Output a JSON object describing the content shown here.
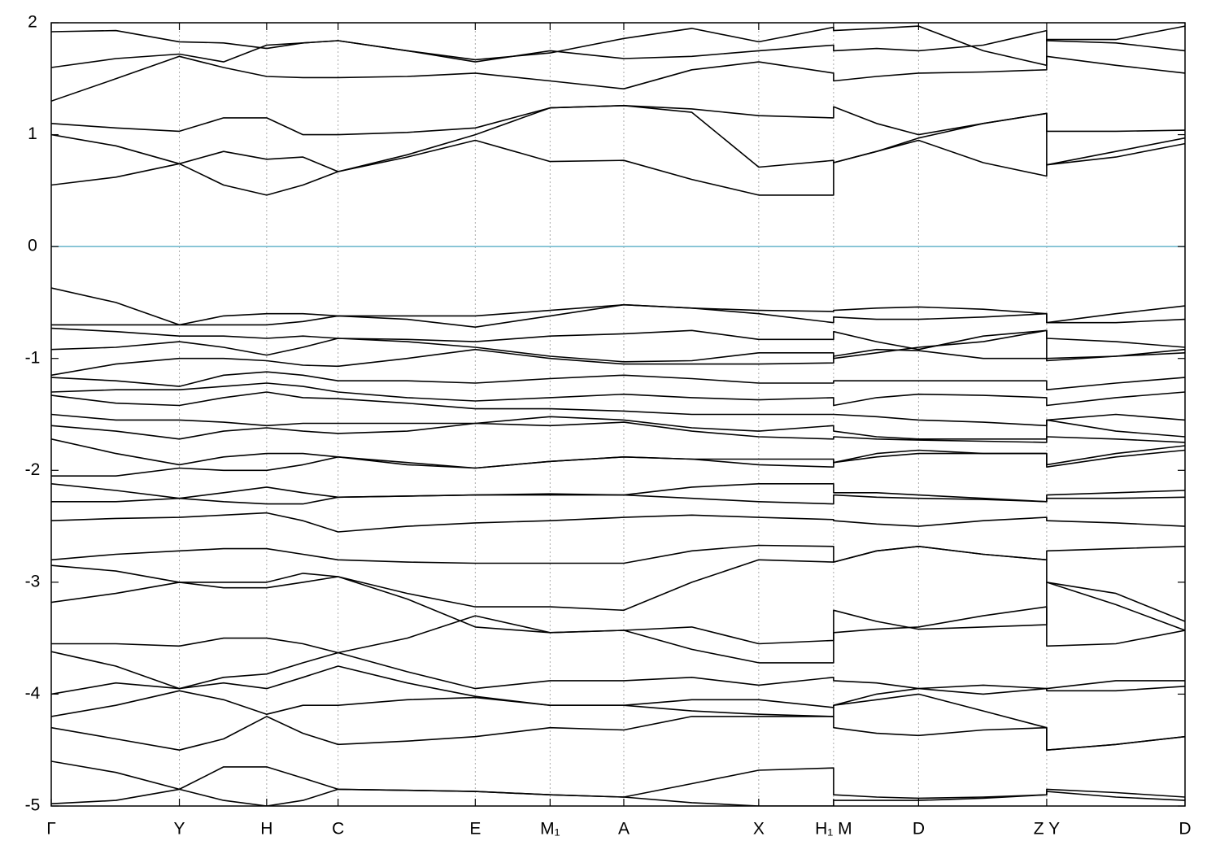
{
  "chart_data": {
    "type": "line",
    "xlim": [
      0,
      1
    ],
    "ylim": [
      -5,
      2
    ],
    "yticks": [
      -5,
      -4,
      -3,
      -2,
      -1,
      0,
      1,
      2
    ],
    "xticks": [
      {
        "value": 0,
        "label": "Γ"
      },
      {
        "value": 0.113,
        "label": "Y"
      },
      {
        "value": 0.19,
        "label": "H"
      },
      {
        "value": 0.253,
        "label": "C"
      },
      {
        "value": 0.374,
        "label": "E"
      },
      {
        "value": 0.44,
        "label": "M₁"
      },
      {
        "value": 0.505,
        "label": "A"
      },
      {
        "value": 0.624,
        "label": "X"
      },
      {
        "value": 0.69,
        "label": "H₁ M"
      },
      {
        "value": 0.765,
        "label": "D"
      },
      {
        "value": 0.878,
        "label": "Z Y"
      },
      {
        "value": 1,
        "label": "D"
      }
    ],
    "grid_x": true,
    "zero_line": {
      "y": 0,
      "color": "#66b3c9"
    },
    "color": "#000000",
    "x": [
      0,
      0.057,
      0.113,
      0.152,
      0.19,
      0.222,
      0.253,
      0.314,
      0.374,
      0.44,
      0.505,
      0.565,
      0.624,
      0.69,
      0.69,
      0.728,
      0.765,
      0.822,
      0.878,
      0.878,
      0.939,
      1.0
    ],
    "series": [
      {
        "values": [
          0.55,
          0.62,
          0.74,
          0.55,
          0.46,
          0.55,
          0.67,
          0.8,
          0.95,
          0.76,
          0.77,
          0.6,
          0.46,
          0.46,
          0.75,
          0.85,
          0.95,
          0.75,
          0.63,
          0.73,
          0.8,
          0.92
        ]
      },
      {
        "values": [
          1.0,
          0.9,
          0.74,
          0.85,
          0.78,
          0.8,
          0.67,
          0.82,
          1.0,
          1.24,
          1.26,
          1.2,
          0.71,
          0.77,
          0.75,
          0.85,
          0.97,
          1.1,
          1.19,
          0.73,
          0.85,
          0.97
        ]
      },
      {
        "values": [
          1.1,
          1.06,
          1.03,
          1.15,
          1.15,
          1.0,
          1.0,
          1.02,
          1.06,
          1.24,
          1.26,
          1.23,
          1.17,
          1.15,
          1.25,
          1.1,
          1.0,
          1.1,
          1.19,
          1.03,
          1.03,
          1.04
        ]
      },
      {
        "values": [
          1.3,
          1.5,
          1.7,
          1.6,
          1.52,
          1.51,
          1.51,
          1.52,
          1.55,
          1.48,
          1.41,
          1.58,
          1.65,
          1.55,
          1.48,
          1.52,
          1.55,
          1.56,
          1.58,
          1.7,
          1.62,
          1.55
        ]
      },
      {
        "values": [
          1.6,
          1.68,
          1.72,
          1.65,
          1.8,
          1.82,
          1.84,
          1.75,
          1.65,
          1.75,
          1.68,
          1.7,
          1.75,
          1.8,
          1.75,
          1.77,
          1.75,
          1.8,
          1.93,
          1.84,
          1.82,
          1.75
        ]
      },
      {
        "values": [
          1.92,
          1.93,
          1.83,
          1.82,
          1.77,
          1.82,
          1.84,
          1.75,
          1.67,
          1.73,
          1.86,
          1.95,
          1.83,
          1.96,
          1.93,
          1.95,
          1.97,
          1.75,
          1.62,
          1.85,
          1.85,
          1.97
        ]
      },
      {
        "values": [
          -0.37,
          -0.5,
          -0.7,
          -0.62,
          -0.6,
          -0.6,
          -0.62,
          -0.62,
          -0.62,
          -0.57,
          -0.52,
          -0.55,
          -0.57,
          -0.58,
          -0.57,
          -0.55,
          -0.54,
          -0.56,
          -0.6,
          -0.68,
          -0.6,
          -0.53
        ]
      },
      {
        "values": [
          -0.7,
          -0.7,
          -0.7,
          -0.7,
          -0.7,
          -0.67,
          -0.62,
          -0.65,
          -0.72,
          -0.62,
          -0.52,
          -0.55,
          -0.6,
          -0.68,
          -0.63,
          -0.65,
          -0.65,
          -0.63,
          -0.6,
          -0.68,
          -0.68,
          -0.65
        ]
      },
      {
        "values": [
          -0.73,
          -0.76,
          -0.8,
          -0.8,
          -0.82,
          -0.8,
          -0.82,
          -0.83,
          -0.85,
          -0.8,
          -0.78,
          -0.75,
          -0.83,
          -0.83,
          -0.76,
          -0.85,
          -0.92,
          -0.8,
          -0.75,
          -0.82,
          -0.85,
          -0.9
        ]
      },
      {
        "values": [
          -0.92,
          -0.9,
          -0.85,
          -0.9,
          -0.97,
          -0.9,
          -0.82,
          -0.85,
          -0.9,
          -0.98,
          -1.03,
          -1.02,
          -0.95,
          -0.95,
          -1.0,
          -0.95,
          -0.9,
          -0.85,
          -0.75,
          -1.02,
          -0.98,
          -0.92
        ]
      },
      {
        "values": [
          -1.15,
          -1.05,
          -1.0,
          -1.0,
          -1.02,
          -1.06,
          -1.07,
          -1.0,
          -0.92,
          -1.0,
          -1.05,
          -1.05,
          -1.05,
          -1.04,
          -0.98,
          -0.92,
          -0.93,
          -1.0,
          -1.0,
          -1.0,
          -0.98,
          -0.95
        ]
      },
      {
        "values": [
          -1.17,
          -1.2,
          -1.25,
          -1.15,
          -1.12,
          -1.15,
          -1.2,
          -1.2,
          -1.22,
          -1.18,
          -1.15,
          -1.18,
          -1.22,
          -1.22,
          -1.2,
          -1.2,
          -1.2,
          -1.2,
          -1.2,
          -1.28,
          -1.22,
          -1.17
        ]
      },
      {
        "values": [
          -1.3,
          -1.28,
          -1.28,
          -1.25,
          -1.22,
          -1.25,
          -1.3,
          -1.35,
          -1.38,
          -1.35,
          -1.32,
          -1.35,
          -1.37,
          -1.35,
          -1.42,
          -1.35,
          -1.32,
          -1.33,
          -1.35,
          -1.42,
          -1.35,
          -1.3
        ]
      },
      {
        "values": [
          -1.33,
          -1.4,
          -1.42,
          -1.35,
          -1.3,
          -1.35,
          -1.36,
          -1.4,
          -1.45,
          -1.45,
          -1.47,
          -1.5,
          -1.5,
          -1.5,
          -1.5,
          -1.52,
          -1.55,
          -1.57,
          -1.6,
          -1.55,
          -1.5,
          -1.55
        ]
      },
      {
        "values": [
          -1.5,
          -1.55,
          -1.55,
          -1.57,
          -1.6,
          -1.58,
          -1.58,
          -1.58,
          -1.58,
          -1.52,
          -1.55,
          -1.62,
          -1.65,
          -1.6,
          -1.65,
          -1.7,
          -1.72,
          -1.72,
          -1.72,
          -1.55,
          -1.65,
          -1.7
        ]
      },
      {
        "values": [
          -1.6,
          -1.65,
          -1.72,
          -1.65,
          -1.62,
          -1.65,
          -1.67,
          -1.65,
          -1.58,
          -1.6,
          -1.57,
          -1.65,
          -1.7,
          -1.72,
          -1.7,
          -1.72,
          -1.73,
          -1.74,
          -1.75,
          -1.7,
          -1.72,
          -1.75
        ]
      },
      {
        "values": [
          -1.72,
          -1.85,
          -1.95,
          -1.88,
          -1.85,
          -1.85,
          -1.88,
          -1.95,
          -1.98,
          -1.92,
          -1.88,
          -1.9,
          -1.95,
          -1.97,
          -1.93,
          -1.85,
          -1.82,
          -1.85,
          -1.85,
          -1.97,
          -1.88,
          -1.82
        ]
      },
      {
        "values": [
          -2.05,
          -2.05,
          -1.98,
          -2.0,
          -2.0,
          -1.95,
          -1.88,
          -1.93,
          -1.98,
          -1.92,
          -1.88,
          -1.9,
          -1.9,
          -1.9,
          -1.93,
          -1.88,
          -1.85,
          -1.85,
          -1.85,
          -1.95,
          -1.85,
          -1.78
        ]
      },
      {
        "values": [
          -2.12,
          -2.18,
          -2.25,
          -2.2,
          -2.15,
          -2.2,
          -2.24,
          -2.23,
          -2.22,
          -2.21,
          -2.22,
          -2.15,
          -2.12,
          -2.12,
          -2.2,
          -2.2,
          -2.22,
          -2.25,
          -2.28,
          -2.22,
          -2.2,
          -2.18
        ]
      },
      {
        "values": [
          -2.28,
          -2.28,
          -2.25,
          -2.28,
          -2.3,
          -2.3,
          -2.24,
          -2.23,
          -2.22,
          -2.22,
          -2.22,
          -2.25,
          -2.28,
          -2.3,
          -2.22,
          -2.24,
          -2.25,
          -2.26,
          -2.28,
          -2.25,
          -2.25,
          -2.24
        ]
      },
      {
        "values": [
          -2.45,
          -2.43,
          -2.42,
          -2.4,
          -2.38,
          -2.45,
          -2.55,
          -2.5,
          -2.47,
          -2.45,
          -2.42,
          -2.4,
          -2.42,
          -2.44,
          -2.45,
          -2.48,
          -2.5,
          -2.45,
          -2.42,
          -2.45,
          -2.47,
          -2.5
        ]
      },
      {
        "values": [
          -2.8,
          -2.75,
          -2.72,
          -2.7,
          -2.7,
          -2.75,
          -2.8,
          -2.82,
          -2.83,
          -2.83,
          -2.83,
          -2.72,
          -2.67,
          -2.68,
          -2.82,
          -2.72,
          -2.68,
          -2.75,
          -2.8,
          -2.72,
          -2.7,
          -2.68
        ]
      },
      {
        "values": [
          -2.85,
          -2.9,
          -3.0,
          -3.0,
          -3.0,
          -2.92,
          -2.95,
          -3.1,
          -3.22,
          -3.22,
          -3.25,
          -3.0,
          -2.8,
          -2.82,
          -2.82,
          -2.72,
          -2.68,
          -2.75,
          -2.8,
          -3.0,
          -3.1,
          -3.35
        ]
      },
      {
        "values": [
          -3.18,
          -3.1,
          -3.0,
          -3.05,
          -3.05,
          -3.0,
          -2.95,
          -3.15,
          -3.4,
          -3.45,
          -3.43,
          -3.4,
          -3.55,
          -3.52,
          -3.45,
          -3.42,
          -3.4,
          -3.3,
          -3.22,
          -3.57,
          -3.55,
          -3.43
        ]
      },
      {
        "values": [
          -3.55,
          -3.55,
          -3.57,
          -3.5,
          -3.5,
          -3.55,
          -3.63,
          -3.5,
          -3.3,
          -3.45,
          -3.43,
          -3.6,
          -3.72,
          -3.72,
          -3.25,
          -3.35,
          -3.42,
          -3.4,
          -3.38,
          -3.0,
          -3.2,
          -3.43
        ]
      },
      {
        "values": [
          -3.62,
          -3.75,
          -3.95,
          -3.85,
          -3.82,
          -3.72,
          -3.63,
          -3.8,
          -3.95,
          -3.88,
          -3.88,
          -3.85,
          -3.92,
          -3.85,
          -3.88,
          -3.9,
          -3.95,
          -3.92,
          -3.95,
          -3.95,
          -3.88,
          -3.88
        ]
      },
      {
        "values": [
          -4.0,
          -3.9,
          -3.95,
          -3.9,
          -3.95,
          -3.85,
          -3.75,
          -3.9,
          -4.02,
          -4.1,
          -4.1,
          -4.05,
          -4.05,
          -4.12,
          -4.1,
          -4.0,
          -3.95,
          -4.0,
          -3.95,
          -3.97,
          -3.97,
          -3.93
        ]
      },
      {
        "values": [
          -4.2,
          -4.1,
          -3.97,
          -4.05,
          -4.18,
          -4.1,
          -4.1,
          -4.05,
          -4.03,
          -4.1,
          -4.1,
          -4.15,
          -4.18,
          -4.2,
          -4.1,
          -4.05,
          -4.0,
          -4.15,
          -4.3,
          -4.5,
          -4.45,
          -4.38
        ]
      },
      {
        "values": [
          -4.3,
          -4.4,
          -4.5,
          -4.4,
          -4.2,
          -4.35,
          -4.45,
          -4.42,
          -4.38,
          -4.3,
          -4.32,
          -4.2,
          -4.2,
          -4.2,
          -4.3,
          -4.35,
          -4.37,
          -4.32,
          -4.3,
          -4.5,
          -4.45,
          -4.38
        ]
      },
      {
        "values": [
          -4.6,
          -4.7,
          -4.85,
          -4.65,
          -4.65,
          -4.75,
          -4.85,
          -4.86,
          -4.87,
          -4.9,
          -4.92,
          -4.8,
          -4.68,
          -4.66,
          -4.9,
          -4.92,
          -4.93,
          -4.92,
          -4.9,
          -4.85,
          -4.88,
          -4.92
        ]
      },
      {
        "values": [
          -4.98,
          -4.95,
          -4.85,
          -4.95,
          -5.0,
          -4.95,
          -4.85,
          -4.86,
          -4.87,
          -4.9,
          -4.92,
          -4.97,
          -5.0,
          -5.0,
          -4.95,
          -4.95,
          -4.95,
          -4.93,
          -4.9,
          -4.87,
          -4.92,
          -4.95
        ]
      }
    ]
  }
}
